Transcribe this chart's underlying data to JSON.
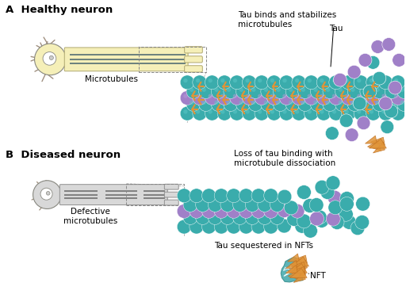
{
  "title_a": "A  Healthy neuron",
  "title_b": "B  Diseased neuron",
  "label_microtubules": "Microtubules",
  "label_defective": "Defective\nmicrotubules",
  "label_tau_stabilizes": "Tau binds and stabilizes\nmicrotubules",
  "label_tau": "Tau",
  "label_loss": "Loss of tau binding with\nmicrotubule dissociation",
  "label_sequestered": "Tau sequestered in NFTs",
  "label_nft": "NFT",
  "color_healthy_fill": "#f5efb8",
  "color_diseased_fill": "#d8d8d8",
  "color_mt_teal": "#3aacac",
  "color_mt_purple": "#a080c8",
  "color_tau": "#e09438",
  "color_dendrite": "#a09080",
  "color_nft_teal": "#4aacb0",
  "bg_color": "#ffffff"
}
